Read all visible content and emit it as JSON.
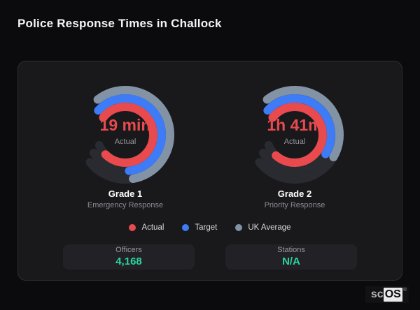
{
  "page": {
    "title": "Police Response Times in Challock"
  },
  "colors": {
    "actual": "#e84a4e",
    "target": "#3d7bf7",
    "uk_average": "#8393a6",
    "track": "#2a2b30",
    "value_accent": "#2bd4a0",
    "card_background": "#19191c",
    "page_background": "#0b0b0d"
  },
  "legend": [
    {
      "label": "Actual",
      "color": "#e84a4e"
    },
    {
      "label": "Target",
      "color": "#3d7bf7"
    },
    {
      "label": "UK Average",
      "color": "#8393a6"
    }
  ],
  "stats": [
    {
      "label": "Officers",
      "value": "4,168"
    },
    {
      "label": "Stations",
      "value": "N/A"
    }
  ],
  "logo": {
    "prefix": "sc",
    "suffix": "OS",
    "registered": "®"
  },
  "chart_data": {
    "type": "gauge",
    "title": "Police Response Times in Challock",
    "legend_position": "bottom-center",
    "gauges": [
      {
        "title": "Grade 1",
        "subtitle": "Emergency Response",
        "value": "19 min",
        "value_caption": "Actual",
        "rings": [
          {
            "series": "UK Average",
            "color": "#8393a6",
            "radius": 64,
            "start_deg": -38,
            "track_sweep_deg": 270,
            "fill_sweep_deg": 208
          },
          {
            "series": "Target",
            "color": "#3d7bf7",
            "radius": 52,
            "start_deg": -48,
            "track_sweep_deg": 288,
            "fill_sweep_deg": 222
          },
          {
            "series": "Actual",
            "color": "#e84a4e",
            "radius": 40,
            "start_deg": -52,
            "track_sweep_deg": 300,
            "fill_sweep_deg": 277
          }
        ]
      },
      {
        "title": "Grade 2",
        "subtitle": "Priority Response",
        "value": "1h 41m",
        "value_caption": "Actual",
        "rings": [
          {
            "series": "UK Average",
            "color": "#8393a6",
            "radius": 64,
            "start_deg": -38,
            "track_sweep_deg": 270,
            "fill_sweep_deg": 158
          },
          {
            "series": "Target",
            "color": "#3d7bf7",
            "radius": 52,
            "start_deg": -48,
            "track_sweep_deg": 288,
            "fill_sweep_deg": 170
          },
          {
            "series": "Actual",
            "color": "#e84a4e",
            "radius": 40,
            "start_deg": -52,
            "track_sweep_deg": 300,
            "fill_sweep_deg": 274
          }
        ]
      }
    ]
  }
}
